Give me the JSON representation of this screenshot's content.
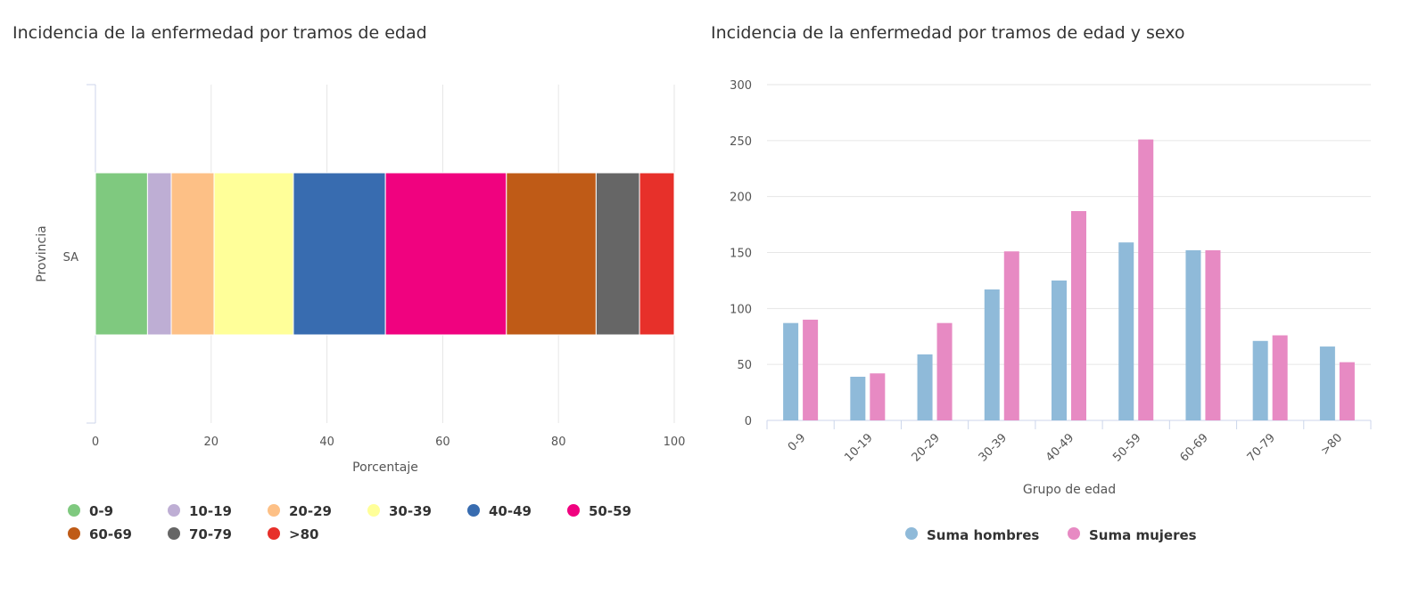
{
  "chart_data": [
    {
      "type": "bar",
      "orientation": "horizontal",
      "stacked": "percent",
      "title": "Incidencia de la enfermedad por tramos de edad",
      "xlabel": "Porcentaje",
      "ylabel": "Provincia",
      "categories": [
        "SA"
      ],
      "xlim": [
        0,
        100
      ],
      "xticks": [
        "0",
        "20",
        "40",
        "60",
        "80",
        "100"
      ],
      "grid": true,
      "legend": "bottom",
      "series": [
        {
          "name": "0-9",
          "color": "#7fc97f",
          "values": [
            9.0
          ]
        },
        {
          "name": "10-19",
          "color": "#beaed4",
          "values": [
            4.1
          ]
        },
        {
          "name": "20-29",
          "color": "#fdc086",
          "values": [
            7.4
          ]
        },
        {
          "name": "30-39",
          "color": "#ffff99",
          "values": [
            13.7
          ]
        },
        {
          "name": "40-49",
          "color": "#386cb0",
          "values": [
            15.9
          ]
        },
        {
          "name": "50-59",
          "color": "#f0027f",
          "values": [
            20.9
          ]
        },
        {
          "name": "60-69",
          "color": "#bf5b17",
          "values": [
            15.5
          ]
        },
        {
          "name": "70-79",
          "color": "#666666",
          "values": [
            7.5
          ]
        },
        {
          "name": ">80",
          "color": "#e7302a",
          "values": [
            6.0
          ]
        }
      ]
    },
    {
      "type": "bar",
      "title": "Incidencia de la enfermedad por tramos de edad y sexo",
      "xlabel": "Grupo de edad",
      "ylabel": "",
      "categories": [
        "0-9",
        "10-19",
        "20-29",
        "30-39",
        "40-49",
        "50-59",
        "60-69",
        "70-79",
        ">80"
      ],
      "ylim": [
        0,
        300
      ],
      "yticks": [
        "0",
        "50",
        "100",
        "150",
        "200",
        "250",
        "300"
      ],
      "grid": true,
      "legend": "bottom",
      "series": [
        {
          "name": "Suma hombres",
          "color": "#8fbad9",
          "values": [
            87,
            39,
            59,
            117,
            125,
            159,
            152,
            71,
            66
          ]
        },
        {
          "name": "Suma mujeres",
          "color": "#e78ac3",
          "values": [
            90,
            42,
            87,
            151,
            187,
            251,
            152,
            76,
            52
          ]
        }
      ]
    }
  ]
}
